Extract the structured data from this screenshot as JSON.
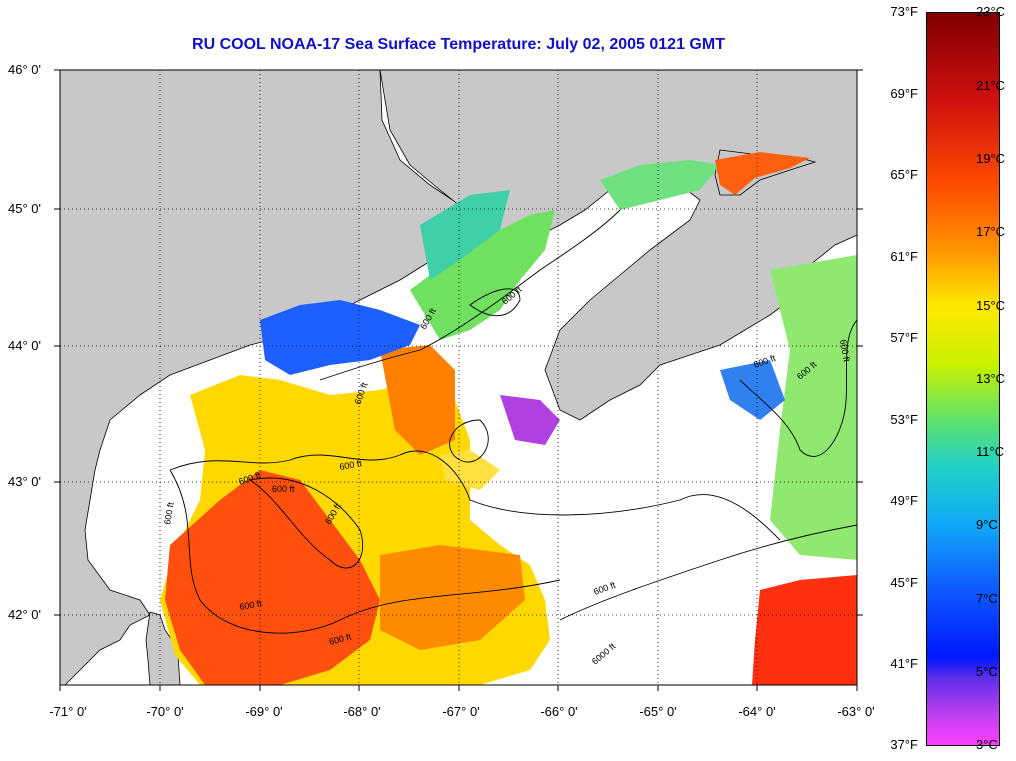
{
  "title": "RU COOL  NOAA-17  Sea Surface Temperature:  July 02, 2005 0121 GMT",
  "colors": {
    "land": "#c8c8c8",
    "nodata": "#ffffff",
    "coast": "#000000"
  },
  "lat_labels": [
    "46° 0'",
    "45° 0'",
    "44° 0'",
    "43° 0'",
    "42° 0'"
  ],
  "lon_labels": [
    "-71° 0'",
    "-70° 0'",
    "-69° 0'",
    "-68° 0'",
    "-67° 0'",
    "-66° 0'",
    "-65° 0'",
    "-64° 0'",
    "-63° 0'"
  ],
  "contour_labels": [
    "600 ft",
    "600 ft",
    "600 ft",
    "600 ft",
    "600 ft",
    "600 ft",
    "600 ft",
    "600 ft",
    "600 ft",
    "600 ft",
    "600 ft",
    "6000 ft",
    "600 ft",
    "600 ft",
    "600 ft"
  ],
  "colorbar": {
    "fahrenheit": [
      "73°F",
      "69°F",
      "65°F",
      "61°F",
      "57°F",
      "53°F",
      "49°F",
      "45°F",
      "41°F",
      "37°F"
    ],
    "celsius": [
      "23°C",
      "21°C",
      "19°C",
      "17°C",
      "15°C",
      "13°C",
      "11°C",
      "9°C",
      "7°C",
      "5°C",
      "3°C"
    ]
  }
}
